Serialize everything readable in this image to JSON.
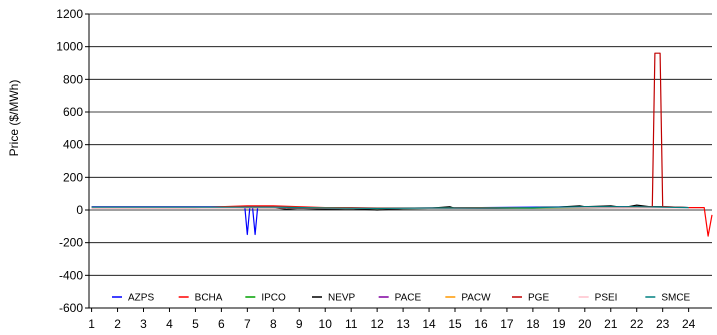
{
  "chart_data": {
    "type": "line",
    "ylabel": "Price ($/MWh)",
    "xlabel": "",
    "ylim": [
      -600,
      1200
    ],
    "xlim": [
      0.9,
      24.9
    ],
    "yticks": [
      -600,
      -400,
      -200,
      0,
      200,
      400,
      600,
      800,
      1000,
      1200
    ],
    "xticks": [
      1,
      2,
      3,
      4,
      5,
      6,
      7,
      8,
      9,
      10,
      11,
      12,
      13,
      14,
      15,
      16,
      17,
      18,
      19,
      20,
      21,
      22,
      23,
      24
    ],
    "grid": "horizontal",
    "legend_placement": "bottom inside",
    "series": [
      {
        "name": "AZPS",
        "color": "#0000ff",
        "x": [
          1,
          6,
          6.6,
          6.9,
          7.0,
          7.1,
          7.2,
          7.3,
          7.4,
          8,
          10,
          12,
          16,
          20,
          22,
          24
        ],
        "y": [
          20,
          20,
          20,
          20,
          -150,
          20,
          20,
          -150,
          20,
          20,
          10,
          10,
          15,
          20,
          20,
          15
        ]
      },
      {
        "name": "BCHA",
        "color": "#ff0000",
        "x": [
          1,
          5,
          6,
          7,
          8,
          9,
          10,
          11,
          12,
          14,
          16,
          18,
          20,
          22,
          24,
          24.6,
          24.75,
          24.9
        ],
        "y": [
          15,
          15,
          20,
          25,
          25,
          20,
          15,
          15,
          12,
          12,
          15,
          15,
          15,
          15,
          15,
          15,
          -160,
          -30
        ]
      },
      {
        "name": "IPCO",
        "color": "#00a000",
        "x": [
          1,
          4,
          6,
          8,
          9,
          10,
          12,
          14,
          16,
          18,
          20,
          22,
          24
        ],
        "y": [
          18,
          18,
          18,
          15,
          12,
          10,
          8,
          10,
          10,
          10,
          12,
          15,
          15
        ]
      },
      {
        "name": "NEVP",
        "color": "#000000",
        "x": [
          1,
          5,
          6,
          7,
          8,
          8.5,
          9,
          10,
          11,
          12,
          13,
          14,
          14.8,
          15,
          16,
          17,
          18,
          19,
          19.8,
          20,
          21,
          21.5,
          22,
          22.5,
          23,
          24
        ],
        "y": [
          18,
          18,
          18,
          15,
          15,
          5,
          10,
          5,
          8,
          0,
          8,
          10,
          20,
          10,
          10,
          12,
          15,
          18,
          25,
          20,
          25,
          15,
          30,
          20,
          20,
          15
        ]
      },
      {
        "name": "PACE",
        "color": "#8000a0",
        "x": [
          1,
          6,
          8,
          10,
          12,
          16,
          20,
          24
        ],
        "y": [
          16,
          16,
          16,
          12,
          10,
          12,
          15,
          14
        ]
      },
      {
        "name": "PACW",
        "color": "#ff9900",
        "x": [
          1,
          6,
          8,
          10,
          12,
          16,
          20,
          24
        ],
        "y": [
          17,
          17,
          17,
          13,
          11,
          13,
          16,
          15
        ]
      },
      {
        "name": "PGE",
        "color": "#c00000",
        "x": [
          1,
          6,
          8,
          10,
          12,
          16,
          20,
          22,
          22.6,
          22.7,
          22.9,
          23.0,
          23.1,
          24
        ],
        "y": [
          15,
          15,
          15,
          10,
          10,
          12,
          15,
          20,
          20,
          960,
          960,
          20,
          20,
          15
        ]
      },
      {
        "name": "PSEI",
        "color": "#ffc0cb",
        "x": [
          1,
          6,
          8,
          10,
          12,
          16,
          20,
          24
        ],
        "y": [
          14,
          14,
          14,
          11,
          9,
          11,
          14,
          13
        ]
      },
      {
        "name": "SMCE",
        "color": "#008080",
        "x": [
          1,
          6,
          8,
          10,
          12,
          14,
          16,
          18,
          20,
          22,
          24
        ],
        "y": [
          17,
          17,
          18,
          12,
          10,
          12,
          12,
          15,
          20,
          20,
          15
        ]
      }
    ]
  }
}
